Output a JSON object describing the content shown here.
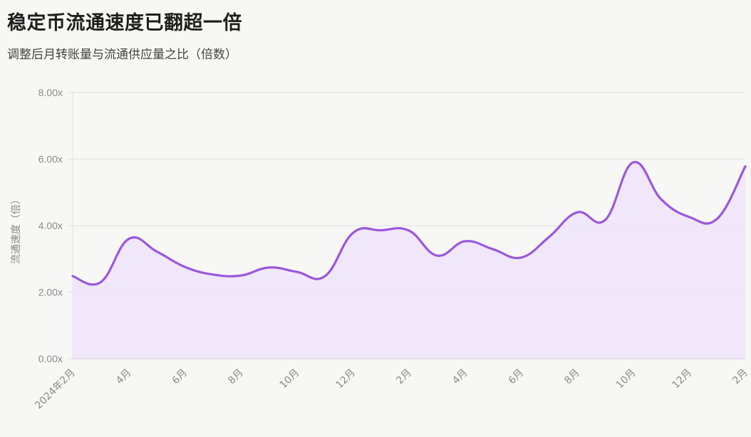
{
  "header": {
    "title": "稳定币流通速度已翻超一倍",
    "subtitle": "调整后月转账量与流通供应量之比（倍数）"
  },
  "colors": {
    "line": "#9b57dc",
    "fill": "#efe4fa",
    "grid": "#e2e2e2",
    "background": "#f7f7f5"
  },
  "chart_data": {
    "type": "area",
    "title": "稳定币流通速度已翻超一倍",
    "subtitle": "调整后月转账量与流通供应量之比（倍数）",
    "xlabel": "",
    "ylabel": "流通速度（倍）",
    "ylim": [
      0,
      8
    ],
    "y_ticks": [
      "0.00x",
      "2.00x",
      "4.00x",
      "6.00x",
      "8.00x"
    ],
    "x_tick_labels": [
      "2024年2月",
      "4月",
      "6月",
      "8月",
      "10月",
      "12月",
      "2月",
      "4月",
      "6月",
      "8月",
      "10月",
      "12月",
      "2月"
    ],
    "grid": true,
    "legend": "none",
    "x": [
      "2024-02",
      "2024-03",
      "2024-04",
      "2024-05",
      "2024-06",
      "2024-07",
      "2024-08",
      "2024-09",
      "2024-10",
      "2024-11",
      "2024-12",
      "2025-01",
      "2025-02",
      "2025-03",
      "2025-04",
      "2025-05",
      "2025-06",
      "2025-07",
      "2025-08",
      "2025-09",
      "2025-10",
      "2025-11",
      "2025-12",
      "2026-01",
      "2026-02"
    ],
    "series": [
      {
        "name": "流通速度",
        "values": [
          2.48,
          2.3,
          3.6,
          3.22,
          2.76,
          2.53,
          2.5,
          2.74,
          2.61,
          2.48,
          3.78,
          3.86,
          3.85,
          3.1,
          3.53,
          3.29,
          3.04,
          3.66,
          4.4,
          4.17,
          5.9,
          4.79,
          4.26,
          4.21,
          5.78
        ]
      }
    ]
  }
}
